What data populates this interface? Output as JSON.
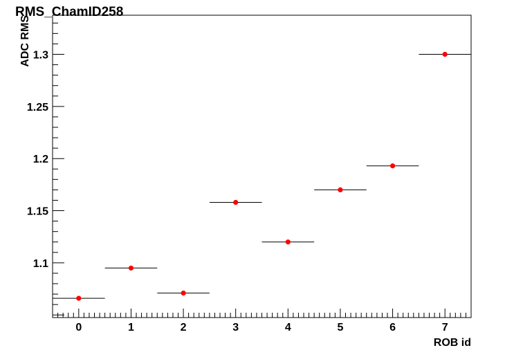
{
  "chart_data": {
    "type": "scatter",
    "title": "RMS_ChamID258",
    "xlabel": "ROB id",
    "ylabel": "ADC RMS",
    "xlim": [
      -0.5,
      7.5
    ],
    "ylim": [
      1.0475,
      1.3375
    ],
    "x_ticks": [
      "0",
      "1",
      "2",
      "3",
      "4",
      "5",
      "6",
      "7"
    ],
    "y_ticks": [
      "1.1",
      "1.15",
      "1.2",
      "1.25",
      "1.3"
    ],
    "x_error": 0.5,
    "x": [
      0,
      1,
      2,
      3,
      4,
      5,
      6,
      7
    ],
    "y": [
      1.066,
      1.095,
      1.071,
      1.158,
      1.12,
      1.17,
      1.193,
      1.3
    ],
    "marker_color": "#ff0000",
    "grid": false,
    "legend": "none"
  }
}
